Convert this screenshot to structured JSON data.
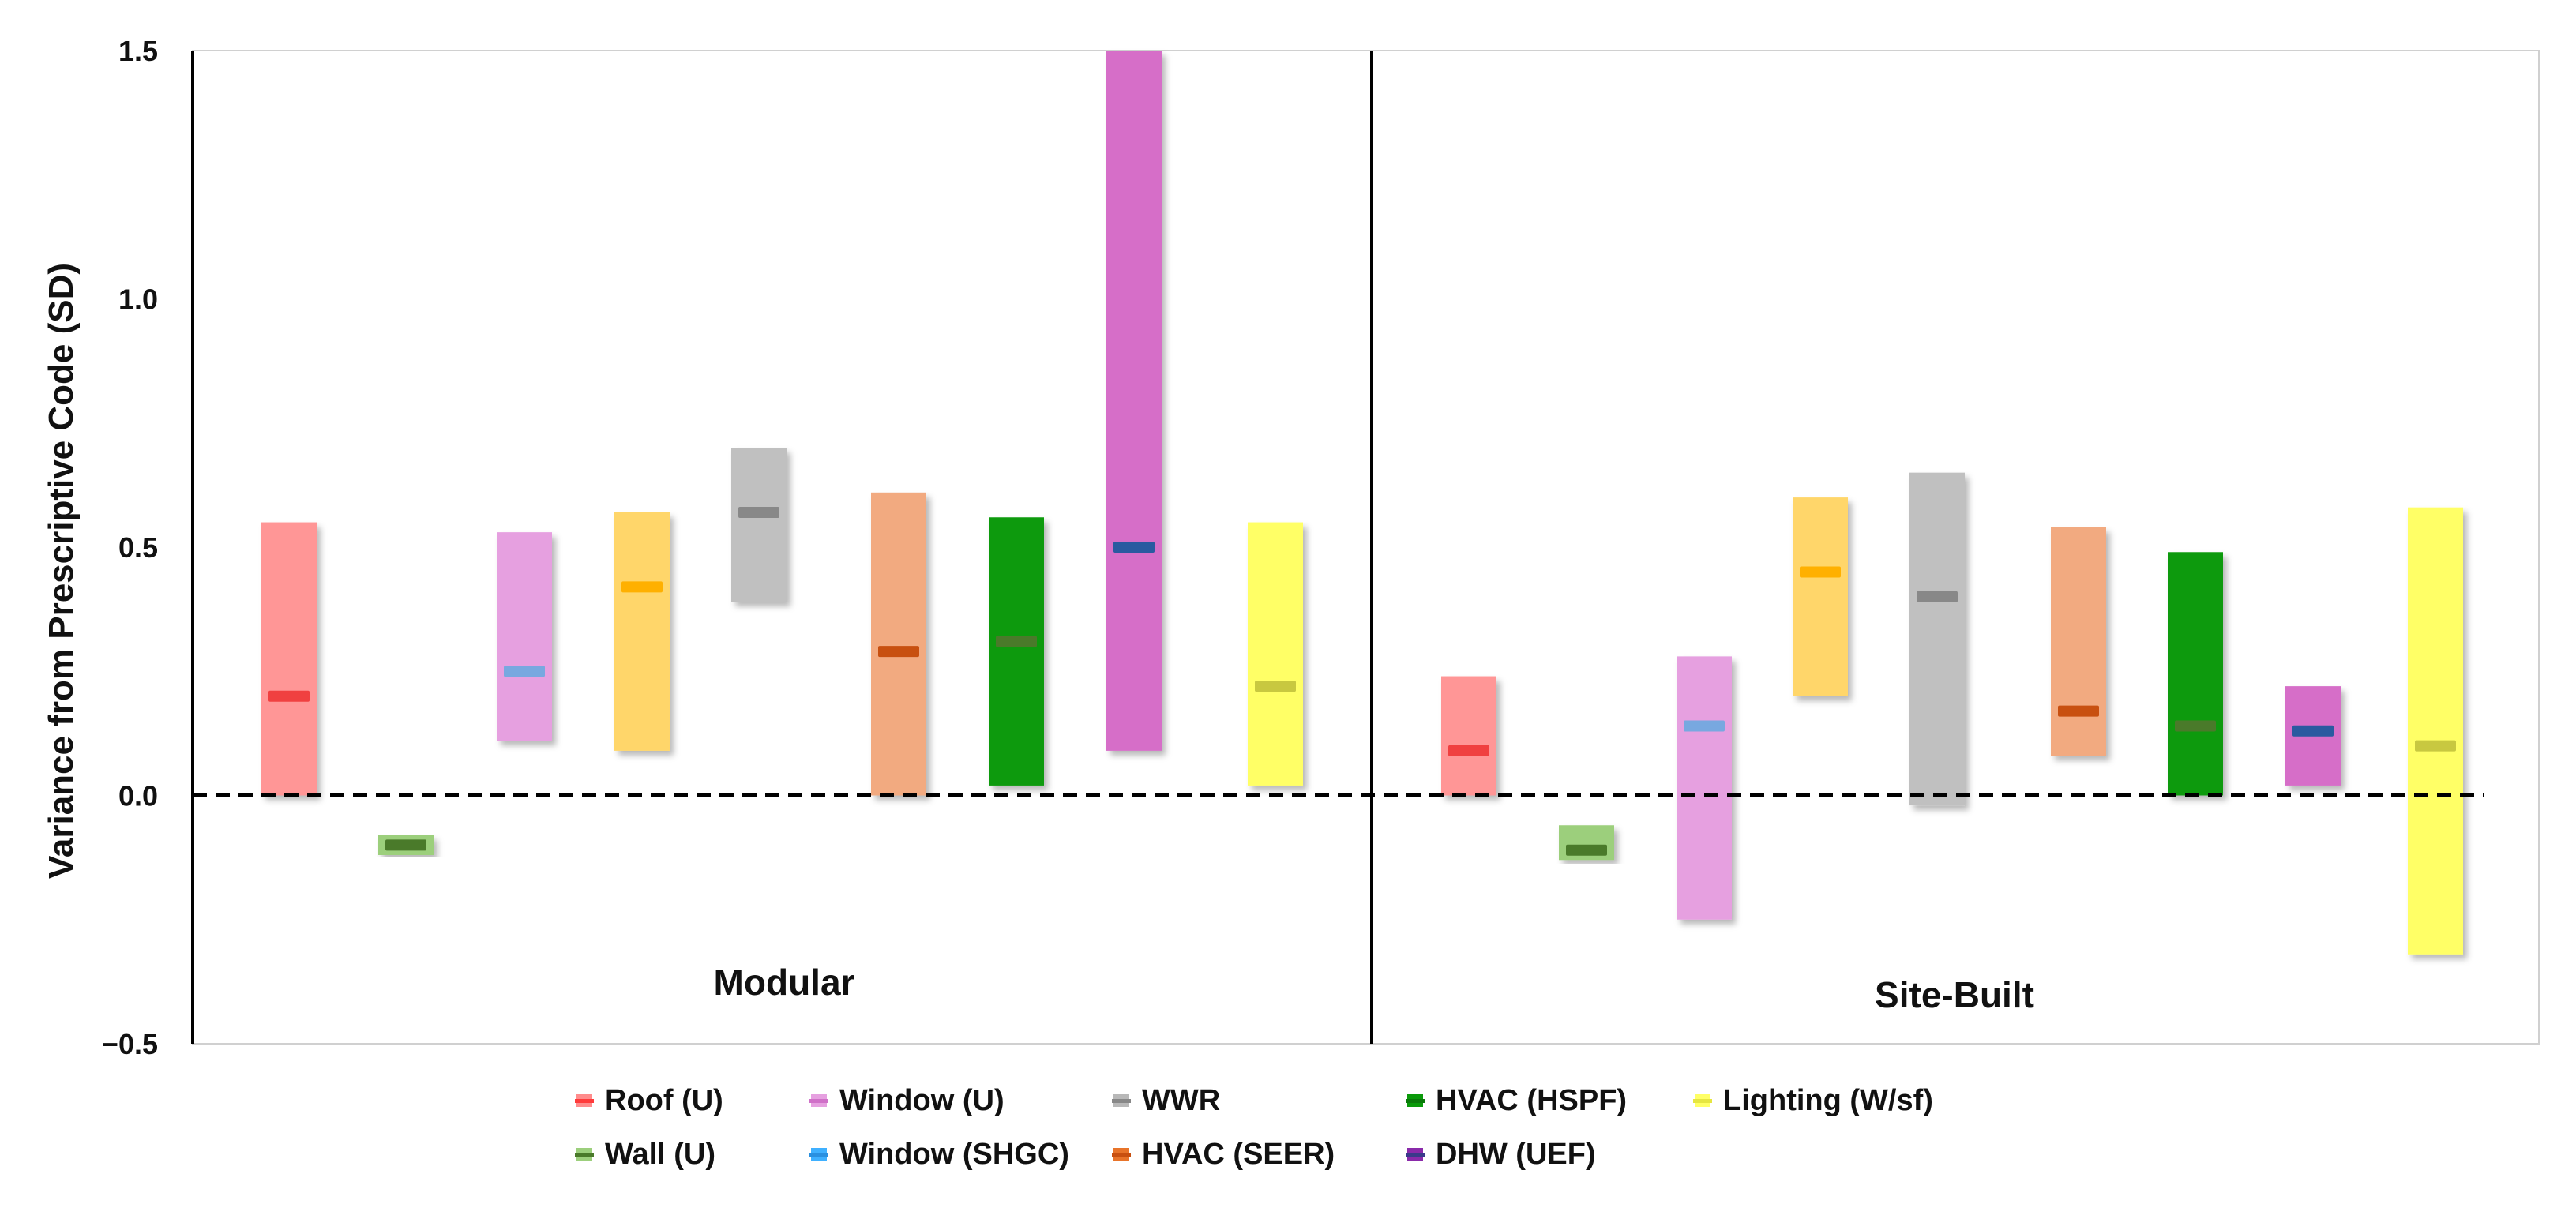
{
  "chart_data": {
    "type": "floating-bar",
    "ylabel": "Variance from Prescriptive Code (SD)",
    "ylim": [
      -0.5,
      1.5
    ],
    "yticks": [
      1.5,
      1.0,
      0.5,
      0.0,
      -0.5
    ],
    "ytick_labels": [
      "1.5",
      "1.0",
      "0.5",
      "0.0",
      "−0.5"
    ],
    "reference_line": 0,
    "legend": [
      {
        "name": "Roof (U)",
        "color": "#ff8c8c",
        "median_color": "#ff3b3b"
      },
      {
        "name": "Window (U)",
        "color": "#e6a0e0",
        "median_color": "#d070c8"
      },
      {
        "name": "WWR",
        "color": "#b8b8b8",
        "median_color": "#888888"
      },
      {
        "name": "HVAC (HSPF)",
        "color": "#0a9a0a",
        "median_color": "#0a7a0a"
      },
      {
        "name": "Lighting (W/sf)",
        "color": "#ffff66",
        "median_color": "#e6e640"
      },
      {
        "name": "Wall (U)",
        "color": "#9ccf7c",
        "median_color": "#4a7a2a"
      },
      {
        "name": "Window (SHGC)",
        "color": "#3fb0ff",
        "median_color": "#2a90e0"
      },
      {
        "name": "HVAC (SEER)",
        "color": "#e8742a",
        "median_color": "#c85010"
      },
      {
        "name": "DHW (UEF)",
        "color": "#8a2aaa",
        "median_color": "#3a3a8a"
      }
    ],
    "panels": [
      {
        "label": "Modular",
        "bars": [
          {
            "name": "Roof (U)",
            "low": 0.0,
            "high": 0.55,
            "median": 0.2,
            "fill": "#ff9696",
            "median_color": "#f04040"
          },
          {
            "name": "Wall (U)",
            "low": -0.12,
            "high": -0.08,
            "median": -0.1,
            "fill": "#9ccf7c",
            "median_color": "#4a7a2a"
          },
          {
            "name": "Window (U)",
            "low": 0.11,
            "high": 0.53,
            "median": 0.25,
            "fill": "#e6a0e0",
            "median_color": "#78a8e0"
          },
          {
            "name": "Window (SHGC)",
            "low": 0.09,
            "high": 0.57,
            "median": 0.42,
            "fill": "#ffd66b",
            "median_color": "#ffb000"
          },
          {
            "name": "WWR",
            "low": 0.39,
            "high": 0.7,
            "median": 0.57,
            "fill": "#c0c0c0",
            "median_color": "#888888"
          },
          {
            "name": "HVAC (SEER)",
            "low": 0.0,
            "high": 0.61,
            "median": 0.29,
            "fill": "#f2aa80",
            "median_color": "#c85010"
          },
          {
            "name": "HVAC (HSPF)",
            "low": 0.02,
            "high": 0.56,
            "median": 0.31,
            "fill": "#0a9a0a",
            "median_color": "#4a7a2a"
          },
          {
            "name": "DHW (UEF)",
            "low": 0.09,
            "high": 1.5,
            "median": 0.5,
            "fill": "#d66ec8",
            "median_color": "#2a5aa0"
          },
          {
            "name": "Lighting (W/sf)",
            "low": 0.02,
            "high": 0.55,
            "median": 0.22,
            "fill": "#ffff66",
            "median_color": "#c8c840"
          }
        ]
      },
      {
        "label": "Site-Built",
        "bars": [
          {
            "name": "Roof (U)",
            "low": 0.0,
            "high": 0.24,
            "median": 0.09,
            "fill": "#ff9696",
            "median_color": "#f04040"
          },
          {
            "name": "Wall (U)",
            "low": -0.13,
            "high": -0.06,
            "median": -0.11,
            "fill": "#9ccf7c",
            "median_color": "#4a7a2a"
          },
          {
            "name": "Window (U)",
            "low": -0.25,
            "high": 0.28,
            "median": 0.14,
            "fill": "#e6a0e0",
            "median_color": "#78a8e0"
          },
          {
            "name": "Window (SHGC)",
            "low": 0.2,
            "high": 0.6,
            "median": 0.45,
            "fill": "#ffd66b",
            "median_color": "#ffb000"
          },
          {
            "name": "WWR",
            "low": -0.02,
            "high": 0.65,
            "median": 0.4,
            "fill": "#c0c0c0",
            "median_color": "#888888"
          },
          {
            "name": "HVAC (SEER)",
            "low": 0.08,
            "high": 0.54,
            "median": 0.17,
            "fill": "#f2aa80",
            "median_color": "#c85010"
          },
          {
            "name": "HVAC (HSPF)",
            "low": 0.0,
            "high": 0.49,
            "median": 0.14,
            "fill": "#0a9a0a",
            "median_color": "#4a7a2a"
          },
          {
            "name": "DHW (UEF)",
            "low": 0.02,
            "high": 0.22,
            "median": 0.13,
            "fill": "#d66ec8",
            "median_color": "#2a5aa0"
          },
          {
            "name": "Lighting (W/sf)",
            "low": -0.32,
            "high": 0.58,
            "median": 0.1,
            "fill": "#ffff66",
            "median_color": "#c8c840"
          }
        ]
      }
    ]
  }
}
